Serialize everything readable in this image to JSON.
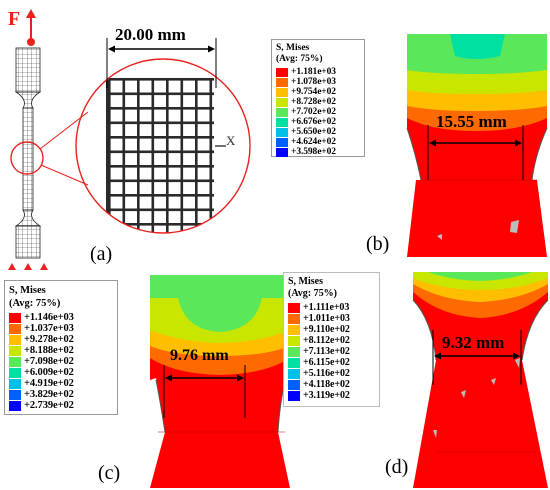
{
  "panel_a": {
    "label": "(a)",
    "force_label": "F",
    "mesh_width": "20.00 mm",
    "axis_label": "X"
  },
  "panel_b": {
    "label": "(b)",
    "dimension": "15.55 mm",
    "legend": {
      "title": "S, Mises",
      "subtitle": "(Avg: 75%)",
      "values": [
        "+1.181e+03",
        "+1.078e+03",
        "+9.754e+02",
        "+8.728e+02",
        "+7.702e+02",
        "+6.676e+02",
        "+5.650e+02",
        "+4.624e+02",
        "+3.598e+02"
      ]
    }
  },
  "panel_c": {
    "label": "(c)",
    "dimension": "9.76 mm",
    "legend": {
      "title": "S, Mises",
      "subtitle": "(Avg: 75%)",
      "values": [
        "+1.146e+03",
        "+1.037e+03",
        "+9.278e+02",
        "+8.188e+02",
        "+7.098e+02",
        "+6.009e+02",
        "+4.919e+02",
        "+3.829e+02",
        "+2.739e+02"
      ]
    }
  },
  "panel_d": {
    "label": "(d)",
    "dimension": "9.32 mm",
    "legend": {
      "title": "S, Mises",
      "subtitle": "(Avg: 75%)",
      "values": [
        "+1.111e+03",
        "+1.011e+03",
        "+9.110e+02",
        "+8.112e+02",
        "+7.113e+02",
        "+6.115e+02",
        "+5.116e+02",
        "+4.118e+02",
        "+3.119e+02"
      ]
    }
  },
  "colors": {
    "contour_scale": [
      "#ff0000",
      "#ff6a00",
      "#ffbf00",
      "#c8e600",
      "#5ae85a",
      "#00e0a0",
      "#00c0e8",
      "#0060ff",
      "#0000ff"
    ],
    "red": "#e8211d",
    "mesh": "#222222"
  }
}
